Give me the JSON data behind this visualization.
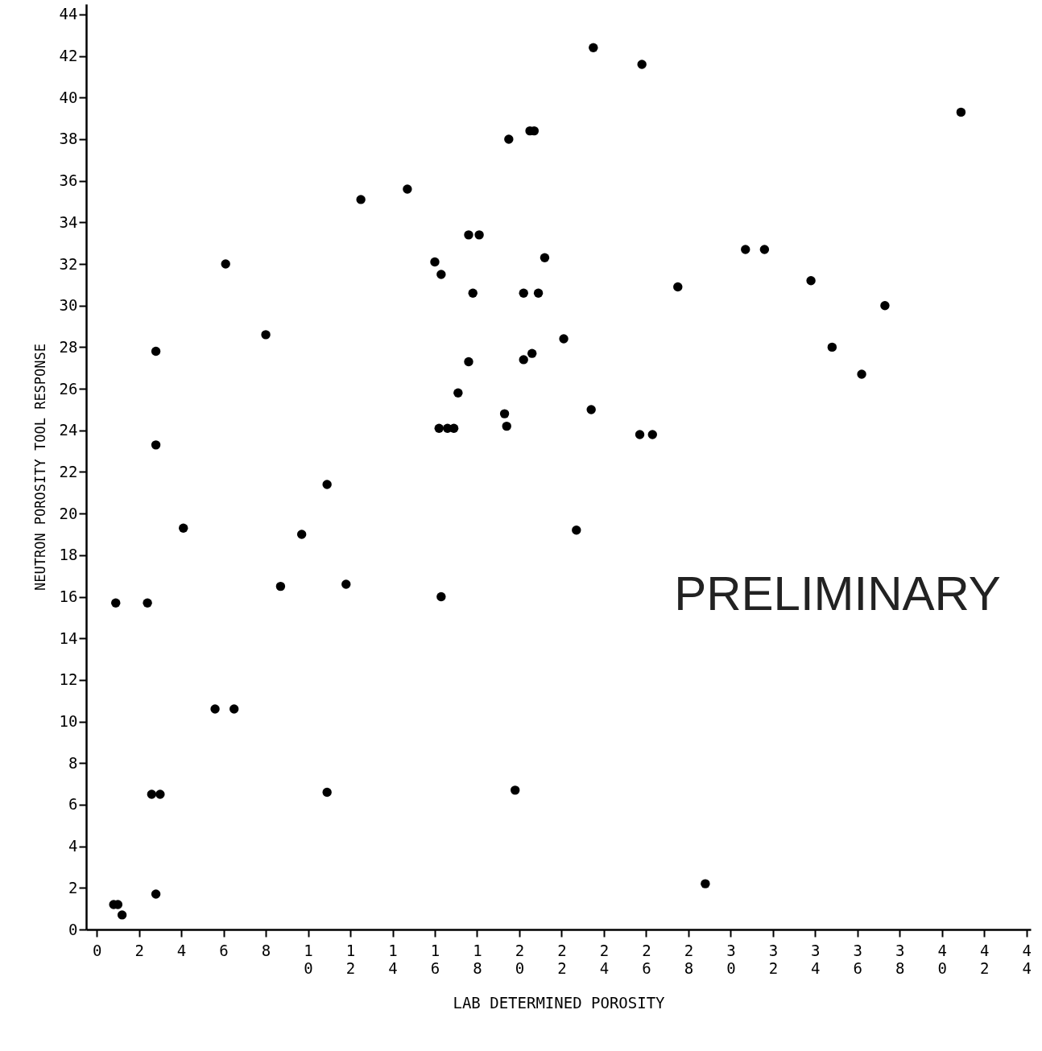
{
  "chart_data": {
    "type": "scatter",
    "xlabel": "LAB DETERMINED POROSITY",
    "ylabel": "NEUTRON POROSITY TOOL RESPONSE",
    "annotations": [
      "PRELIMINARY"
    ],
    "x": [
      23.5,
      25.8,
      40.9,
      19.5,
      20.5,
      20.7,
      12.5,
      14.7,
      17.6,
      18.1,
      16.0,
      16.3,
      6.1,
      21.2,
      17.8,
      20.2,
      20.9,
      30.7,
      31.6,
      27.5,
      33.8,
      37.3,
      8.0,
      2.8,
      22.1,
      17.6,
      20.2,
      20.6,
      34.8,
      36.2,
      17.1,
      19.3,
      19.4,
      16.2,
      16.6,
      16.9,
      23.4,
      25.7,
      26.3,
      2.8,
      10.9,
      4.1,
      9.7,
      22.7,
      8.7,
      11.8,
      0.9,
      2.4,
      16.3,
      5.6,
      6.5,
      2.6,
      3.0,
      10.9,
      19.8,
      0.8,
      1.0,
      1.2,
      2.8,
      28.8
    ],
    "values": [
      42.4,
      41.6,
      39.3,
      38.0,
      38.4,
      38.4,
      35.1,
      35.6,
      33.4,
      33.4,
      32.1,
      31.5,
      32.0,
      32.3,
      30.6,
      30.6,
      30.6,
      32.7,
      32.7,
      30.9,
      31.2,
      30.0,
      28.6,
      27.8,
      28.4,
      27.3,
      27.4,
      27.7,
      28.0,
      26.7,
      25.8,
      24.8,
      24.2,
      24.1,
      24.1,
      24.1,
      25.0,
      23.8,
      23.8,
      23.3,
      21.4,
      19.3,
      19.0,
      19.2,
      16.5,
      16.6,
      15.7,
      15.7,
      16.0,
      10.6,
      10.6,
      6.5,
      6.5,
      6.6,
      6.7,
      1.2,
      1.2,
      0.7,
      1.7,
      2.2
    ],
    "color": "#000000",
    "marker": "circle",
    "xlim": [
      -0.5,
      44.2
    ],
    "ylim": [
      0,
      44.5
    ],
    "xticks": [
      0,
      2,
      4,
      6,
      8,
      10,
      12,
      14,
      16,
      18,
      20,
      22,
      24,
      26,
      28,
      30,
      32,
      34,
      36,
      38,
      40,
      42,
      44
    ],
    "yticks": [
      0,
      2,
      4,
      6,
      8,
      10,
      12,
      14,
      16,
      18,
      20,
      22,
      24,
      26,
      28,
      30,
      32,
      34,
      36,
      38,
      40,
      42,
      44
    ]
  }
}
